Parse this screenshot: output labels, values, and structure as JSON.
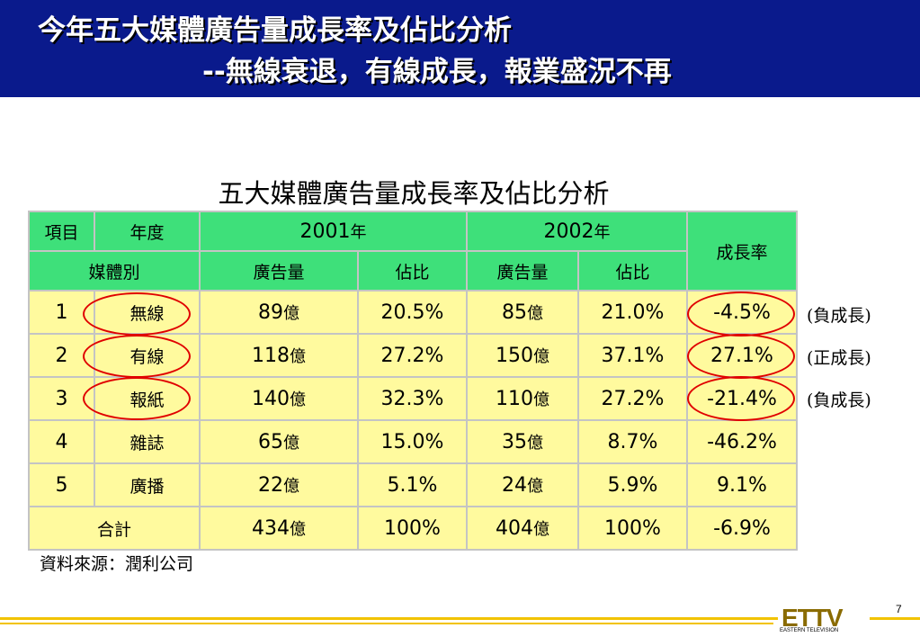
{
  "header": {
    "title_line1": "今年五大媒體廣告量成長率及佔比分析",
    "title_line2": "--無線衰退，有線成長，報業盛況不再",
    "bg_color": "#0a1a8c"
  },
  "table": {
    "title": "五大媒體廣告量成長率及佔比分析",
    "head": {
      "item": "項目",
      "year": "年度",
      "y2001": "2001",
      "y2002": "2002",
      "year_unit": "年",
      "growth": "成長率",
      "media": "媒體別",
      "volume": "廣告量",
      "share": "佔比"
    },
    "unit": "億",
    "rows": [
      {
        "no": "1",
        "media": "無線",
        "v2001": "89",
        "s2001": "20.5%",
        "v2002": "85",
        "s2002": "21.0%",
        "growth": "-4.5%"
      },
      {
        "no": "2",
        "media": "有線",
        "v2001": "118",
        "s2001": "27.2%",
        "v2002": "150",
        "s2002": "37.1%",
        "growth": "27.1%"
      },
      {
        "no": "3",
        "media": "報紙",
        "v2001": "140",
        "s2001": "32.3%",
        "v2002": "110",
        "s2002": "27.2%",
        "growth": "-21.4%"
      },
      {
        "no": "4",
        "media": "雜誌",
        "v2001": "65",
        "s2001": "15.0%",
        "v2002": "35",
        "s2002": "8.7%",
        "growth": "-46.2%"
      },
      {
        "no": "5",
        "media": "廣播",
        "v2001": "22",
        "s2001": "5.1%",
        "v2002": "24",
        "s2002": "5.9%",
        "growth": "9.1%"
      }
    ],
    "total": {
      "label": "合計",
      "v2001": "434",
      "s2001": "100%",
      "v2002": "404",
      "s2002": "100%",
      "growth": "-6.9%"
    },
    "header_color": "#3ee07a",
    "row_color": "#fffa9e"
  },
  "notes": [
    "(負成長)",
    "(正成長)",
    "(負成長)"
  ],
  "source": "資料來源：潤利公司",
  "footer": {
    "logo_text": "ETTV",
    "logo_subtext": "EASTERN TELEVISION",
    "page_number": "7"
  }
}
